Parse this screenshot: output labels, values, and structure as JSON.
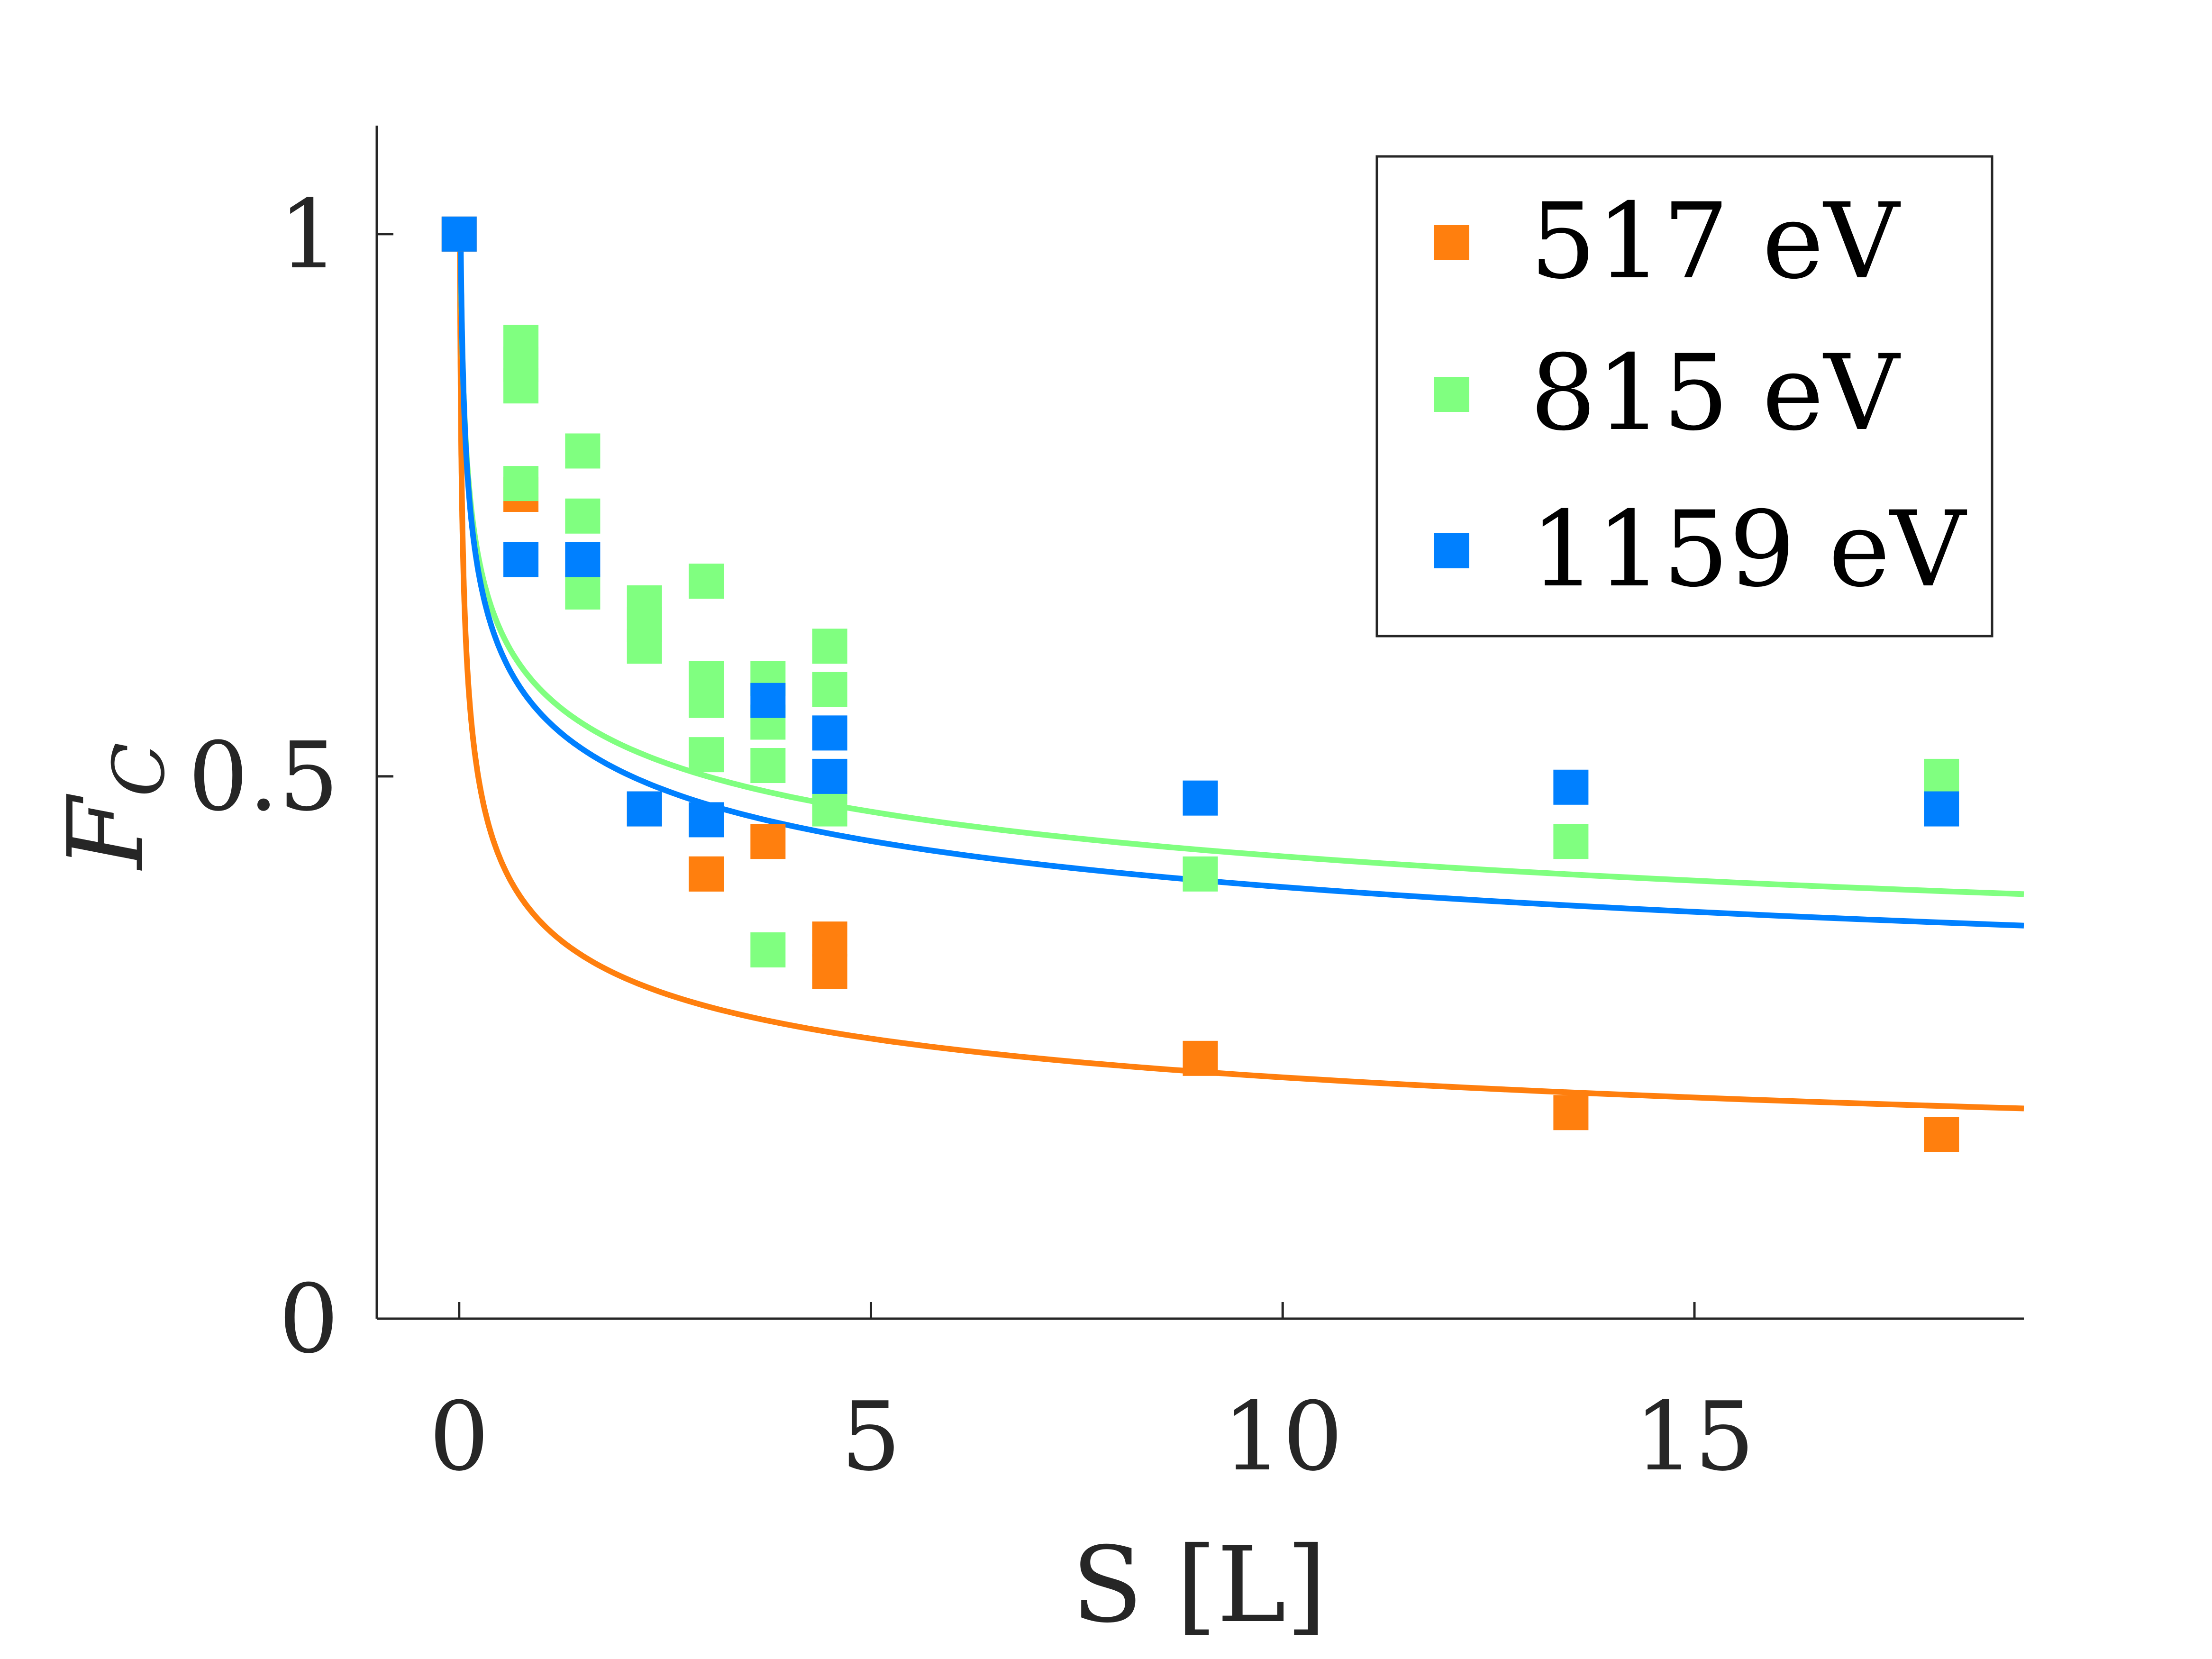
{
  "chart_data": {
    "type": "scatter",
    "title": "",
    "xlabel": "S [L]",
    "ylabel": "F",
    "ylabel_subscript": "C",
    "xlim": [
      -1,
      19
    ],
    "ylim": [
      0,
      1.1
    ],
    "xticks": [
      0,
      5,
      10,
      15
    ],
    "xtick_labels": [
      "0",
      "5",
      "10",
      "15"
    ],
    "yticks": [
      0,
      0.5,
      1
    ],
    "ytick_labels": [
      "0",
      "0.5",
      "1"
    ],
    "grid": false,
    "legend_position": "top-right",
    "series": [
      {
        "name": "517 eV",
        "color": "#ff7f0e",
        "points": [
          [
            0,
            1.0
          ],
          [
            0.75,
            0.76
          ],
          [
            2.25,
            0.47
          ],
          [
            3.0,
            0.41
          ],
          [
            3.0,
            0.41
          ],
          [
            3.75,
            0.44
          ],
          [
            4.5,
            0.35
          ],
          [
            4.5,
            0.32
          ],
          [
            9.0,
            0.24
          ],
          [
            13.5,
            0.19
          ],
          [
            18.0,
            0.17
          ]
        ],
        "fit": {
          "a": 0.365,
          "b": 0.215
        }
      },
      {
        "name": "815 eV",
        "color": "#80ff80",
        "points": [
          [
            0.75,
            0.9
          ],
          [
            0.75,
            0.88
          ],
          [
            0.75,
            0.86
          ],
          [
            0.75,
            0.77
          ],
          [
            1.5,
            0.8
          ],
          [
            1.5,
            0.74
          ],
          [
            1.5,
            0.67
          ],
          [
            2.25,
            0.66
          ],
          [
            2.25,
            0.64
          ],
          [
            2.25,
            0.62
          ],
          [
            3.0,
            0.68
          ],
          [
            3.0,
            0.59
          ],
          [
            3.0,
            0.57
          ],
          [
            3.0,
            0.52
          ],
          [
            3.75,
            0.59
          ],
          [
            3.75,
            0.55
          ],
          [
            3.75,
            0.51
          ],
          [
            3.75,
            0.34
          ],
          [
            4.5,
            0.62
          ],
          [
            4.5,
            0.58
          ],
          [
            4.5,
            0.47
          ],
          [
            9.0,
            0.41
          ],
          [
            13.5,
            0.44
          ],
          [
            18.0,
            0.5
          ]
        ],
        "fit": {
          "a": 0.579,
          "b": 0.133
        }
      },
      {
        "name": "1159 eV",
        "color": "#0080ff",
        "points": [
          [
            0,
            1.0
          ],
          [
            0.75,
            0.7
          ],
          [
            1.5,
            0.7
          ],
          [
            2.25,
            0.47
          ],
          [
            3.0,
            0.46
          ],
          [
            3.75,
            0.57
          ],
          [
            4.5,
            0.54
          ],
          [
            4.5,
            0.5
          ],
          [
            9.0,
            0.48
          ],
          [
            13.5,
            0.49
          ],
          [
            18.0,
            0.47
          ]
        ],
        "fit": {
          "a": 0.557,
          "b": 0.146
        }
      }
    ]
  }
}
